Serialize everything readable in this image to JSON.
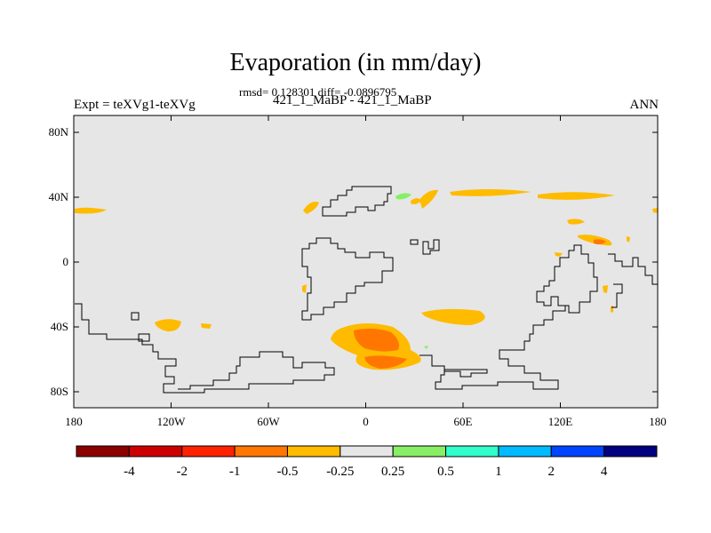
{
  "title": "Evaporation (in mm/day)",
  "stats": "rmsd= 0.128301 diff= -0.0896795",
  "subtitle": "421_1_MaBP - 421_1_MaBP",
  "expt_label": "Expt = teXVg1-teXVg",
  "season": "ANN",
  "map": {
    "background_color": "#e6e6e6",
    "y_tick_labels": [
      "80N",
      "40N",
      "0",
      "40S",
      "80S"
    ],
    "x_tick_labels": [
      "180",
      "120W",
      "60W",
      "0",
      "60E",
      "120E",
      "180"
    ]
  },
  "colorbar": {
    "colors": [
      "#8b0000",
      "#cc0000",
      "#ff2200",
      "#ff7700",
      "#ffbb00",
      "#e6e6e6",
      "#88ee66",
      "#33ffcc",
      "#00bbff",
      "#0044ff",
      "#000080"
    ],
    "labels": [
      "-4",
      "-2",
      "-1",
      "-0.5",
      "-0.25",
      "0.25",
      "0.5",
      "1",
      "2",
      "4"
    ]
  },
  "field_colors": {
    "light_orange": "#ffbb00",
    "dark_orange": "#ff7700",
    "light_green": "#88ee66"
  }
}
